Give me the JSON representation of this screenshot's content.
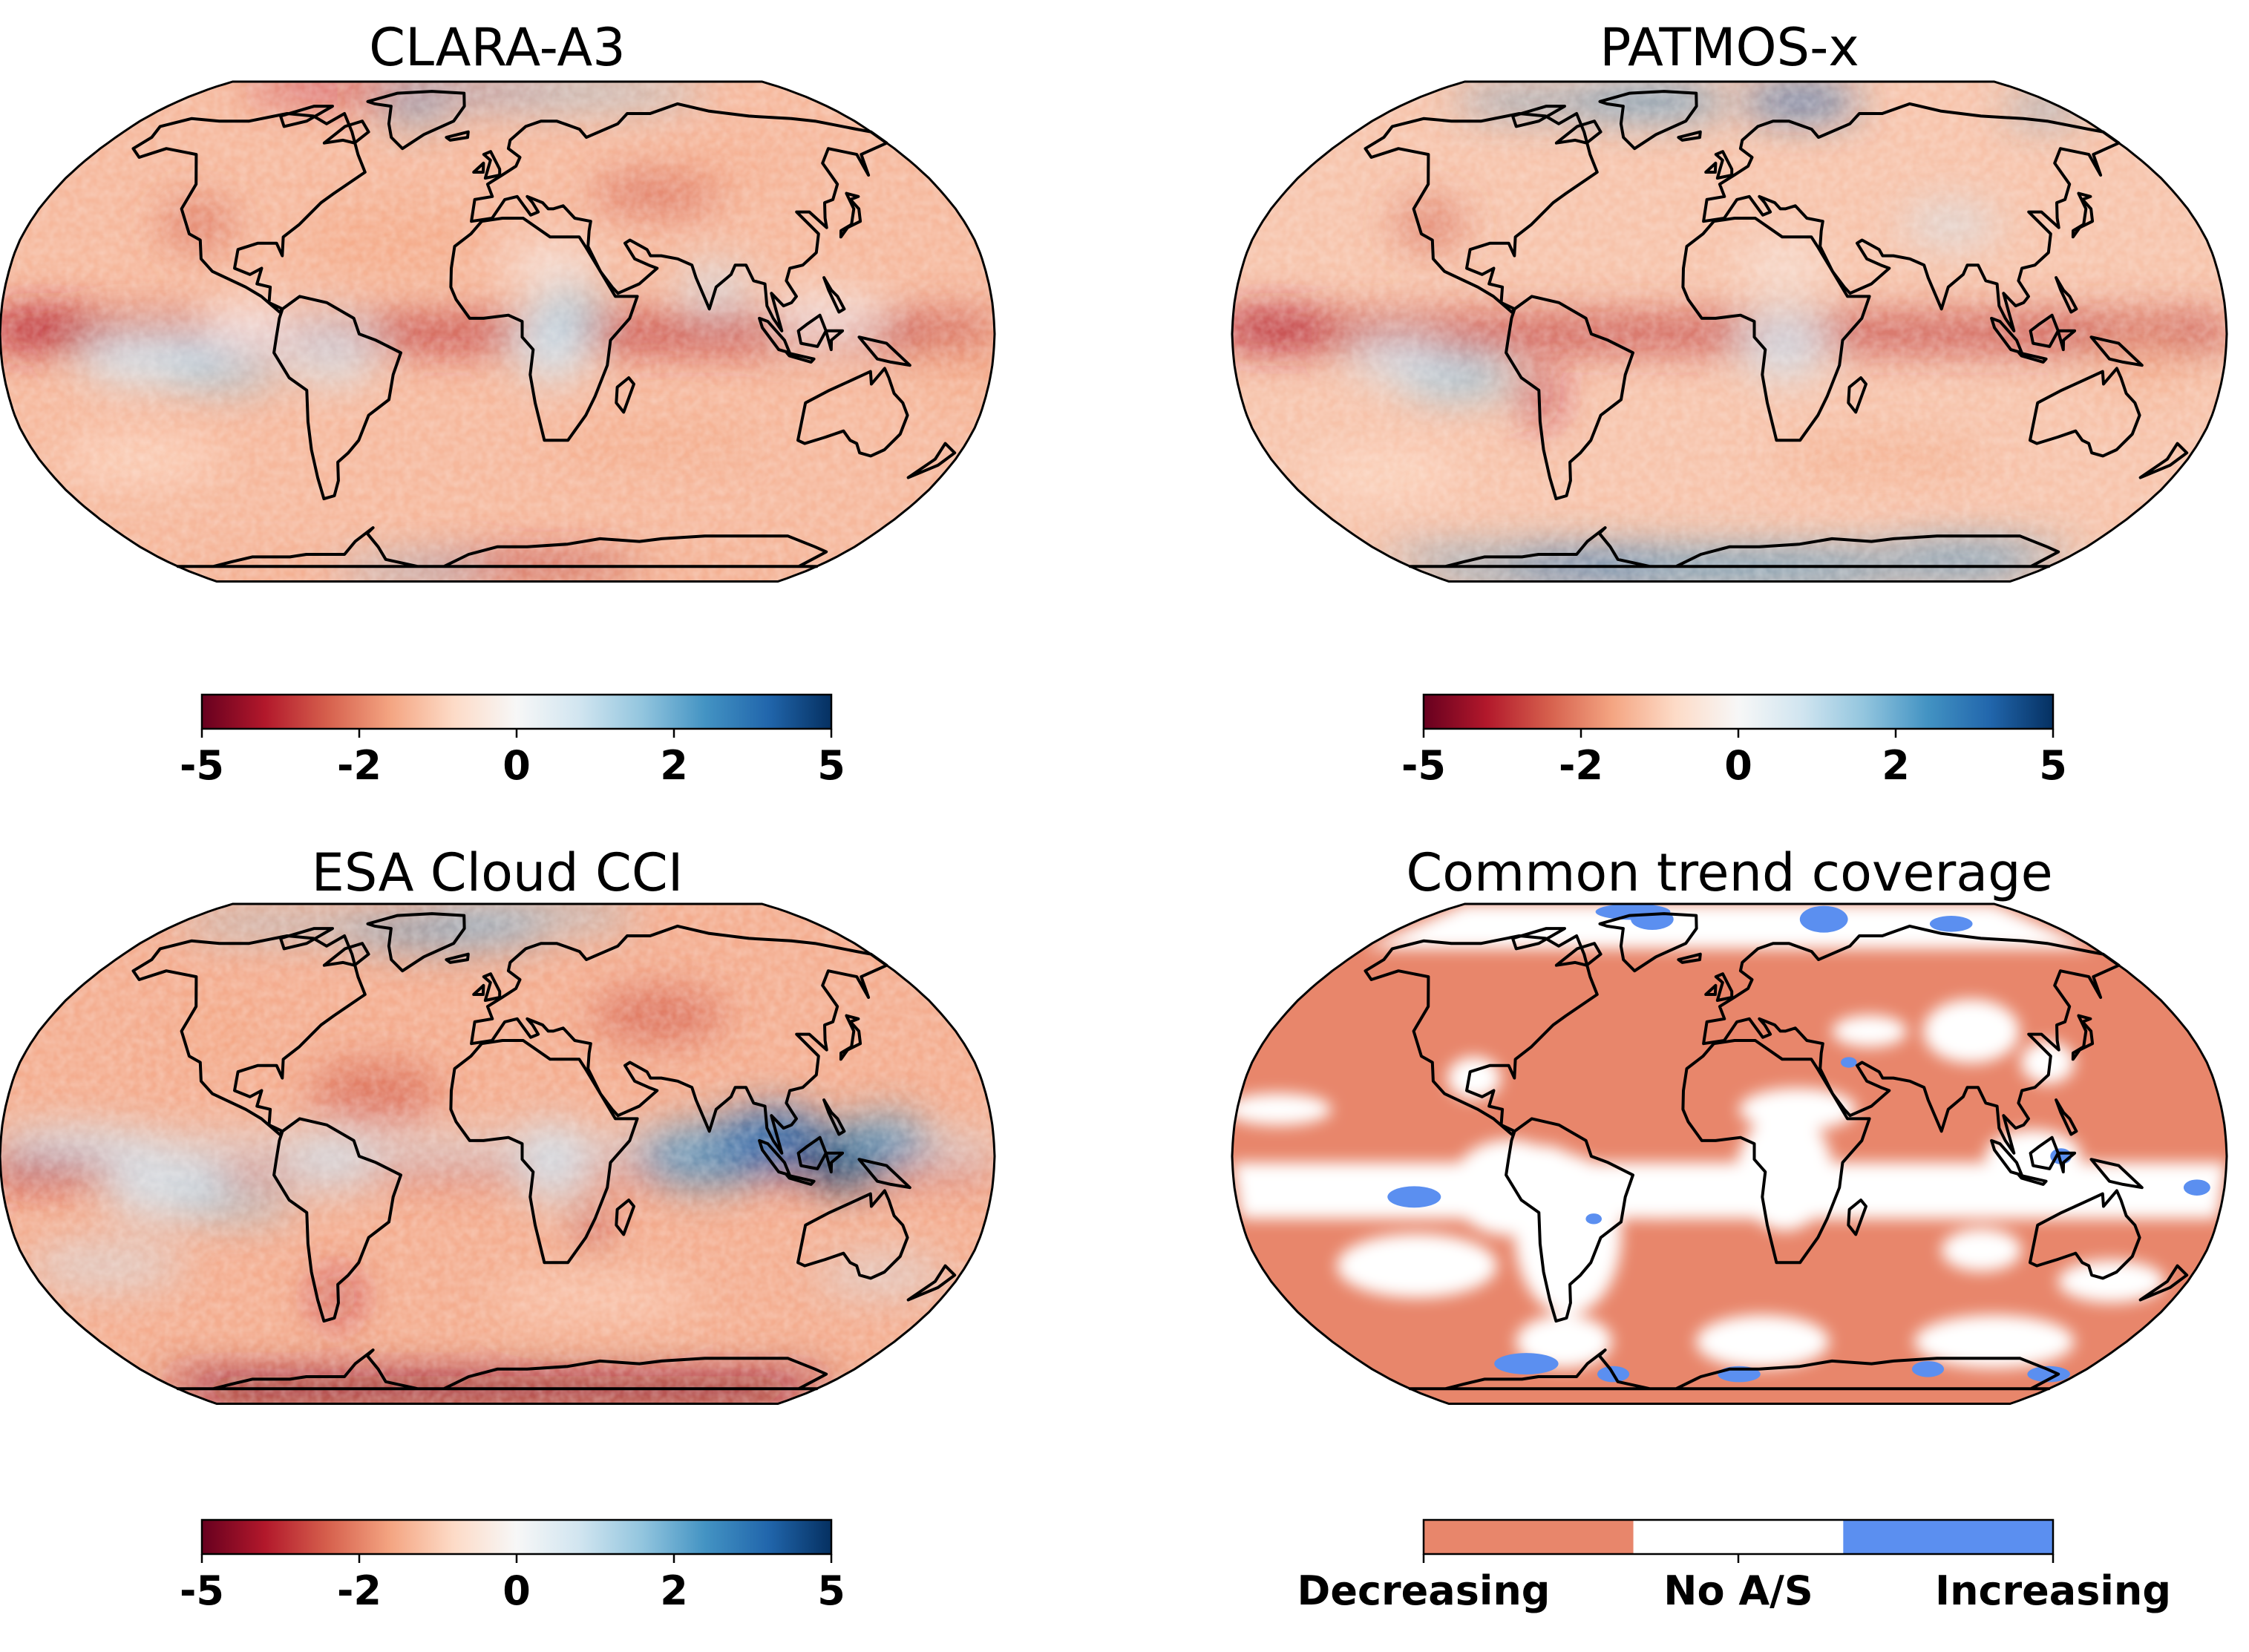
{
  "figure": {
    "panels": [
      {
        "id": "clara",
        "title": "CLARA-A3",
        "variant": "clara"
      },
      {
        "id": "patmos",
        "title": "PATMOS-x",
        "variant": "patmos"
      },
      {
        "id": "esa",
        "title": "ESA Cloud CCI",
        "variant": "esa"
      },
      {
        "id": "common",
        "title": "Common trend coverage",
        "variant": "common"
      }
    ],
    "colorbar": {
      "ticks": [
        "-5",
        "-2",
        "0",
        "2",
        "5"
      ],
      "colormap": "RdBu"
    },
    "category_legend": {
      "labels": [
        "Decreasing",
        "No A/S",
        "Increasing"
      ],
      "colors": [
        "#e8866b",
        "#ffffff",
        "#5b8ff0"
      ]
    }
  },
  "chart_data": [
    {
      "type": "heatmap",
      "title": "CLARA-A3",
      "projection": "Robinson",
      "colorbar_range": [
        -5,
        5
      ],
      "colorbar_ticks": [
        -5,
        -2,
        0,
        2,
        5
      ]
    },
    {
      "type": "heatmap",
      "title": "PATMOS-x",
      "projection": "Robinson",
      "colorbar_range": [
        -5,
        5
      ],
      "colorbar_ticks": [
        -5,
        -2,
        0,
        2,
        5
      ]
    },
    {
      "type": "heatmap",
      "title": "ESA Cloud CCI",
      "projection": "Robinson",
      "colorbar_range": [
        -5,
        5
      ],
      "colorbar_ticks": [
        -5,
        -2,
        0,
        2,
        5
      ]
    },
    {
      "type": "heatmap",
      "title": "Common trend coverage",
      "projection": "Robinson",
      "categories": [
        "Decreasing",
        "No A/S",
        "Increasing"
      ]
    }
  ]
}
